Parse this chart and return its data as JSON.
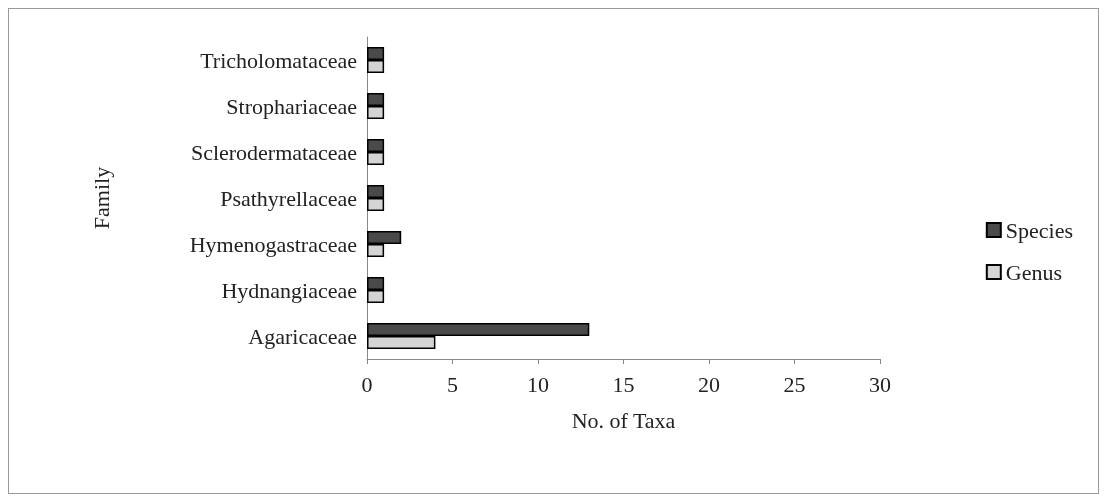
{
  "chart_data": {
    "type": "bar",
    "orientation": "horizontal",
    "xlabel": "No. of Taxa",
    "ylabel": "Family",
    "categories": [
      "Tricholomataceae",
      "Strophariaceae",
      "Sclerodermataceae",
      "Psathyrellaceae",
      "Hymenogastraceae",
      "Hydnangiaceae",
      "Agaricaceae"
    ],
    "series": [
      {
        "name": "Species",
        "color": "#4a4a4a",
        "values": [
          1,
          1,
          1,
          1,
          2,
          1,
          13
        ]
      },
      {
        "name": "Genus",
        "color": "#d4d4d4",
        "values": [
          1,
          1,
          1,
          1,
          1,
          1,
          4
        ]
      }
    ],
    "xlim": [
      0,
      30
    ],
    "xticks": [
      0,
      5,
      10,
      15,
      20,
      25,
      30
    ],
    "grid": false,
    "legend": "right"
  }
}
